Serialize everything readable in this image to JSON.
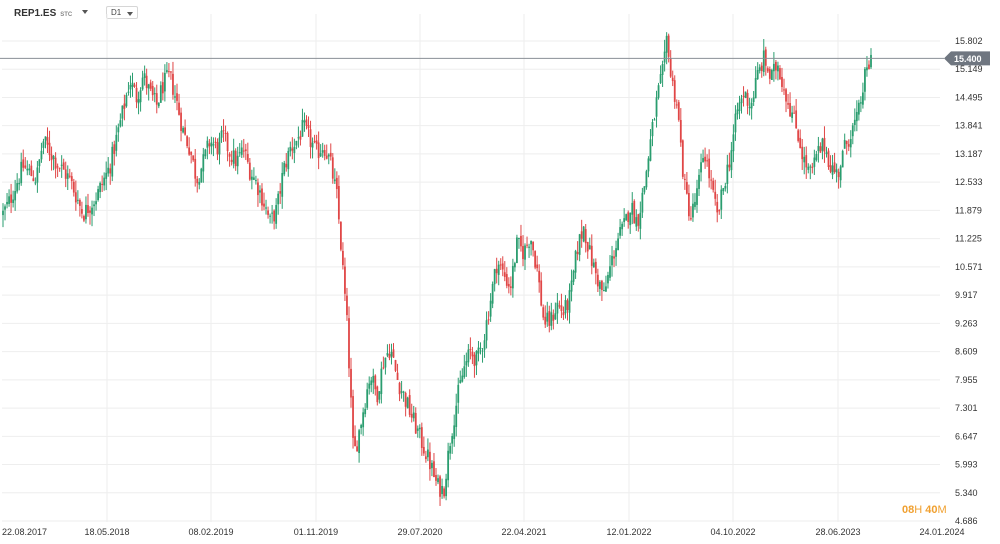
{
  "toolbar": {
    "symbol": "REP1.ES",
    "symbol_suffix": "STC",
    "timeframe": "D1"
  },
  "current_price_label": "15.400",
  "countdown": {
    "hours": "08",
    "hours_unit": "H",
    "minutes": "40",
    "minutes_unit": "M"
  },
  "colors": {
    "up": "#2a9d6f",
    "down": "#e04646",
    "price_line": "#8a8f96",
    "price_tag": "#6f7680",
    "grid": "#eeeeee",
    "countdown": "#f0a030"
  },
  "chart_data": {
    "type": "candlestick",
    "series": [
      {
        "name": "REP1.ES",
        "timeframe": "D1"
      }
    ],
    "ylim": [
      4.686,
      16.2
    ],
    "y_ticks": [
      "15.802",
      "15.149",
      "14.495",
      "13.841",
      "13.187",
      "12.533",
      "11.879",
      "11.225",
      "10.571",
      "9.917",
      "9.263",
      "8.609",
      "7.955",
      "7.301",
      "6.647",
      "5.993",
      "5.340",
      "4.686"
    ],
    "x_ticks": [
      "22.08.2017",
      "18.05.2018",
      "08.02.2019",
      "01.11.2019",
      "29.07.2020",
      "22.04.2021",
      "12.01.2022",
      "04.10.2022",
      "28.06.2023",
      "24.01.2024"
    ],
    "current_price": 15.4,
    "grid": true,
    "path": [
      [
        0,
        11.8
      ],
      [
        2,
        12.1
      ],
      [
        6,
        12.9
      ],
      [
        10,
        12.6
      ],
      [
        12,
        13.5
      ],
      [
        16,
        13.0
      ],
      [
        20,
        12.6
      ],
      [
        24,
        11.8
      ],
      [
        28,
        12.2
      ],
      [
        32,
        12.9
      ],
      [
        36,
        14.2
      ],
      [
        38,
        14.9
      ],
      [
        40,
        14.5
      ],
      [
        42,
        15.0
      ],
      [
        44,
        14.6
      ],
      [
        46,
        14.3
      ],
      [
        48,
        14.8
      ],
      [
        50,
        15.0
      ],
      [
        52,
        14.4
      ],
      [
        54,
        13.7
      ],
      [
        56,
        13.3
      ],
      [
        58,
        12.6
      ],
      [
        60,
        13.0
      ],
      [
        62,
        13.5
      ],
      [
        64,
        13.3
      ],
      [
        66,
        13.6
      ],
      [
        68,
        13.2
      ],
      [
        70,
        13.0
      ],
      [
        72,
        13.3
      ],
      [
        74,
        12.8
      ],
      [
        76,
        12.5
      ],
      [
        78,
        12.1
      ],
      [
        80,
        11.6
      ],
      [
        82,
        11.9
      ],
      [
        84,
        12.8
      ],
      [
        86,
        13.3
      ],
      [
        88,
        13.5
      ],
      [
        90,
        13.8
      ],
      [
        92,
        13.5
      ],
      [
        94,
        13.2
      ],
      [
        96,
        13.4
      ],
      [
        98,
        13.0
      ],
      [
        100,
        12.2
      ],
      [
        101,
        11.3
      ],
      [
        102,
        10.3
      ],
      [
        103,
        9.3
      ],
      [
        104,
        7.8
      ],
      [
        105,
        6.2
      ],
      [
        106,
        6.5
      ],
      [
        108,
        7.3
      ],
      [
        110,
        8.1
      ],
      [
        112,
        7.6
      ],
      [
        114,
        8.4
      ],
      [
        116,
        8.7
      ],
      [
        118,
        8.0
      ],
      [
        120,
        7.6
      ],
      [
        122,
        7.2
      ],
      [
        124,
        6.8
      ],
      [
        126,
        6.4
      ],
      [
        128,
        6.0
      ],
      [
        130,
        5.5
      ],
      [
        132,
        5.4
      ],
      [
        134,
        6.6
      ],
      [
        136,
        7.5
      ],
      [
        138,
        8.2
      ],
      [
        140,
        8.6
      ],
      [
        142,
        8.4
      ],
      [
        144,
        8.9
      ],
      [
        146,
        9.8
      ],
      [
        148,
        10.7
      ],
      [
        150,
        10.4
      ],
      [
        152,
        10.1
      ],
      [
        154,
        11.1
      ],
      [
        156,
        10.9
      ],
      [
        158,
        11.3
      ],
      [
        160,
        10.5
      ],
      [
        162,
        9.3
      ],
      [
        164,
        9.3
      ],
      [
        166,
        9.7
      ],
      [
        168,
        9.5
      ],
      [
        170,
        9.9
      ],
      [
        172,
        11.0
      ],
      [
        174,
        11.5
      ],
      [
        176,
        10.8
      ],
      [
        178,
        10.3
      ],
      [
        180,
        9.9
      ],
      [
        182,
        10.6
      ],
      [
        184,
        11.2
      ],
      [
        186,
        11.5
      ],
      [
        188,
        12.0
      ],
      [
        190,
        11.6
      ],
      [
        192,
        12.4
      ],
      [
        194,
        13.5
      ],
      [
        196,
        14.5
      ],
      [
        198,
        15.2
      ],
      [
        199,
        16.0
      ],
      [
        200,
        15.0
      ],
      [
        202,
        14.3
      ],
      [
        204,
        12.5
      ],
      [
        206,
        11.7
      ],
      [
        208,
        12.3
      ],
      [
        210,
        13.3
      ],
      [
        212,
        12.5
      ],
      [
        214,
        11.7
      ],
      [
        216,
        12.5
      ],
      [
        218,
        13.2
      ],
      [
        220,
        14.2
      ],
      [
        222,
        14.6
      ],
      [
        224,
        14.3
      ],
      [
        226,
        15.0
      ],
      [
        228,
        15.4
      ],
      [
        230,
        14.9
      ],
      [
        232,
        15.3
      ],
      [
        234,
        14.7
      ],
      [
        236,
        14.2
      ],
      [
        238,
        13.7
      ],
      [
        240,
        13.0
      ],
      [
        242,
        12.7
      ],
      [
        244,
        13.2
      ],
      [
        246,
        13.4
      ],
      [
        248,
        12.9
      ],
      [
        250,
        12.7
      ],
      [
        252,
        13.3
      ],
      [
        254,
        13.7
      ],
      [
        256,
        14.0
      ],
      [
        258,
        14.9
      ],
      [
        260,
        15.4
      ]
    ]
  }
}
